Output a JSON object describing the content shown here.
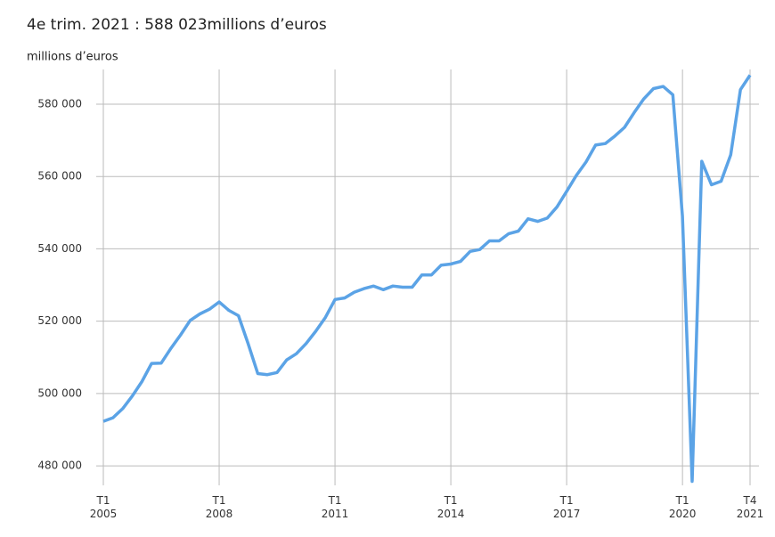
{
  "chart_data": {
    "type": "line",
    "title": "4e trim. 2021 : 588 023millions d’euros",
    "y_label": "millions d’euros",
    "categories": [
      "T1 2005",
      null,
      null,
      null,
      null,
      null,
      null,
      null,
      null,
      null,
      null,
      null,
      "T1 2008",
      null,
      null,
      null,
      null,
      null,
      null,
      null,
      null,
      null,
      null,
      null,
      "T1 2011",
      null,
      null,
      null,
      null,
      null,
      null,
      null,
      null,
      null,
      null,
      null,
      "T1 2014",
      null,
      null,
      null,
      null,
      null,
      null,
      null,
      null,
      null,
      null,
      null,
      "T1 2017",
      null,
      null,
      null,
      null,
      null,
      null,
      null,
      null,
      null,
      null,
      null,
      "T1 2020",
      null,
      null,
      null,
      null,
      null,
      null,
      "T4 2021"
    ],
    "series": [
      {
        "name": "millions d’euros",
        "color": "#5ba3e6",
        "values": [
          492300,
          493300,
          495800,
          499300,
          503300,
          508300,
          508400,
          512500,
          516200,
          520200,
          522000,
          523300,
          525300,
          523000,
          521500,
          513800,
          505500,
          505200,
          505800,
          509300,
          511000,
          513800,
          517200,
          521000,
          526000,
          526400,
          528000,
          529000,
          529700,
          528700,
          529700,
          529400,
          529400,
          532800,
          532800,
          535500,
          535800,
          536500,
          539300,
          539800,
          542200,
          542200,
          544200,
          544900,
          548300,
          547600,
          548500,
          551600,
          555900,
          560300,
          564000,
          568700,
          569100,
          571200,
          573600,
          577700,
          581500,
          584300,
          584900,
          582600,
          549000,
          475700,
          564200,
          557700,
          558700,
          566000,
          584000,
          588023
        ]
      }
    ],
    "ylim": [
      474600,
      589600
    ],
    "yticks": [
      {
        "value": 480000,
        "label": "480 000"
      },
      {
        "value": 500000,
        "label": "500 000"
      },
      {
        "value": 520000,
        "label": "520 000"
      },
      {
        "value": 540000,
        "label": "540 000"
      },
      {
        "value": 560000,
        "label": "560 000"
      },
      {
        "value": 580000,
        "label": "580 000"
      }
    ],
    "grid": true
  }
}
